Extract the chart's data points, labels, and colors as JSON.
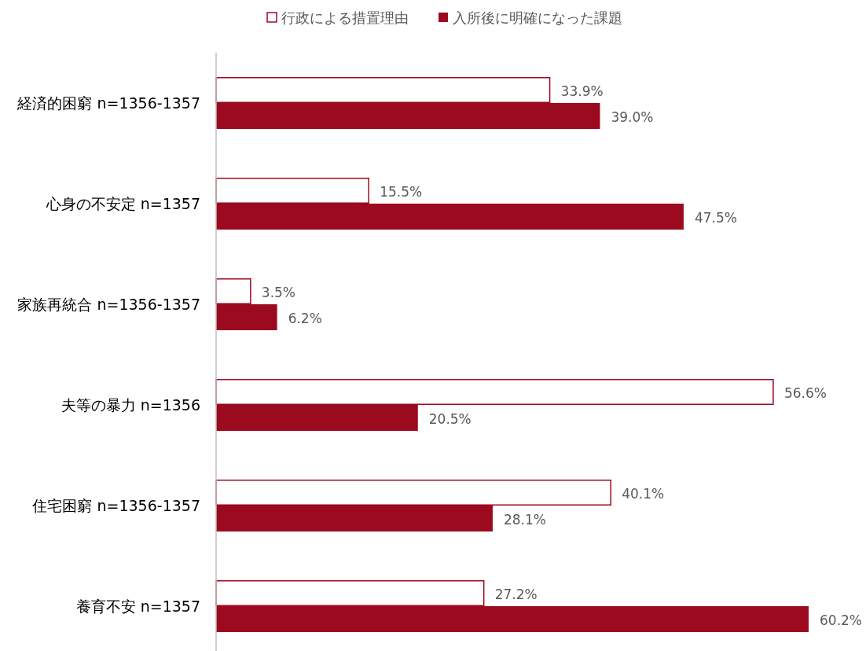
{
  "chart_data": {
    "type": "bar",
    "orientation": "horizontal",
    "legend": "top",
    "categories": [
      "経済的困窮  n=1356-1357",
      "心身の不安定  n=1357",
      "家族再統合  n=1356-1357",
      "夫等の暴力  n=1356",
      "住宅困窮  n=1356-1357",
      "養育不安  n=1357"
    ],
    "series": [
      {
        "name": "行政による措置理由",
        "color": "#ffffff",
        "values": [
          33.9,
          15.5,
          3.5,
          56.6,
          40.1,
          27.2
        ],
        "value_labels": [
          "33.9%",
          "15.5%",
          "3.5%",
          "56.6%",
          "40.1%",
          "27.2%"
        ]
      },
      {
        "name": "入所後に明確になった課題",
        "color": "#9b0a1e",
        "values": [
          39.0,
          47.5,
          6.2,
          20.5,
          28.1,
          60.2
        ],
        "value_labels": [
          "39.0%",
          "47.5%",
          "6.2%",
          "20.5%",
          "28.1%",
          "60.2%"
        ]
      }
    ]
  }
}
